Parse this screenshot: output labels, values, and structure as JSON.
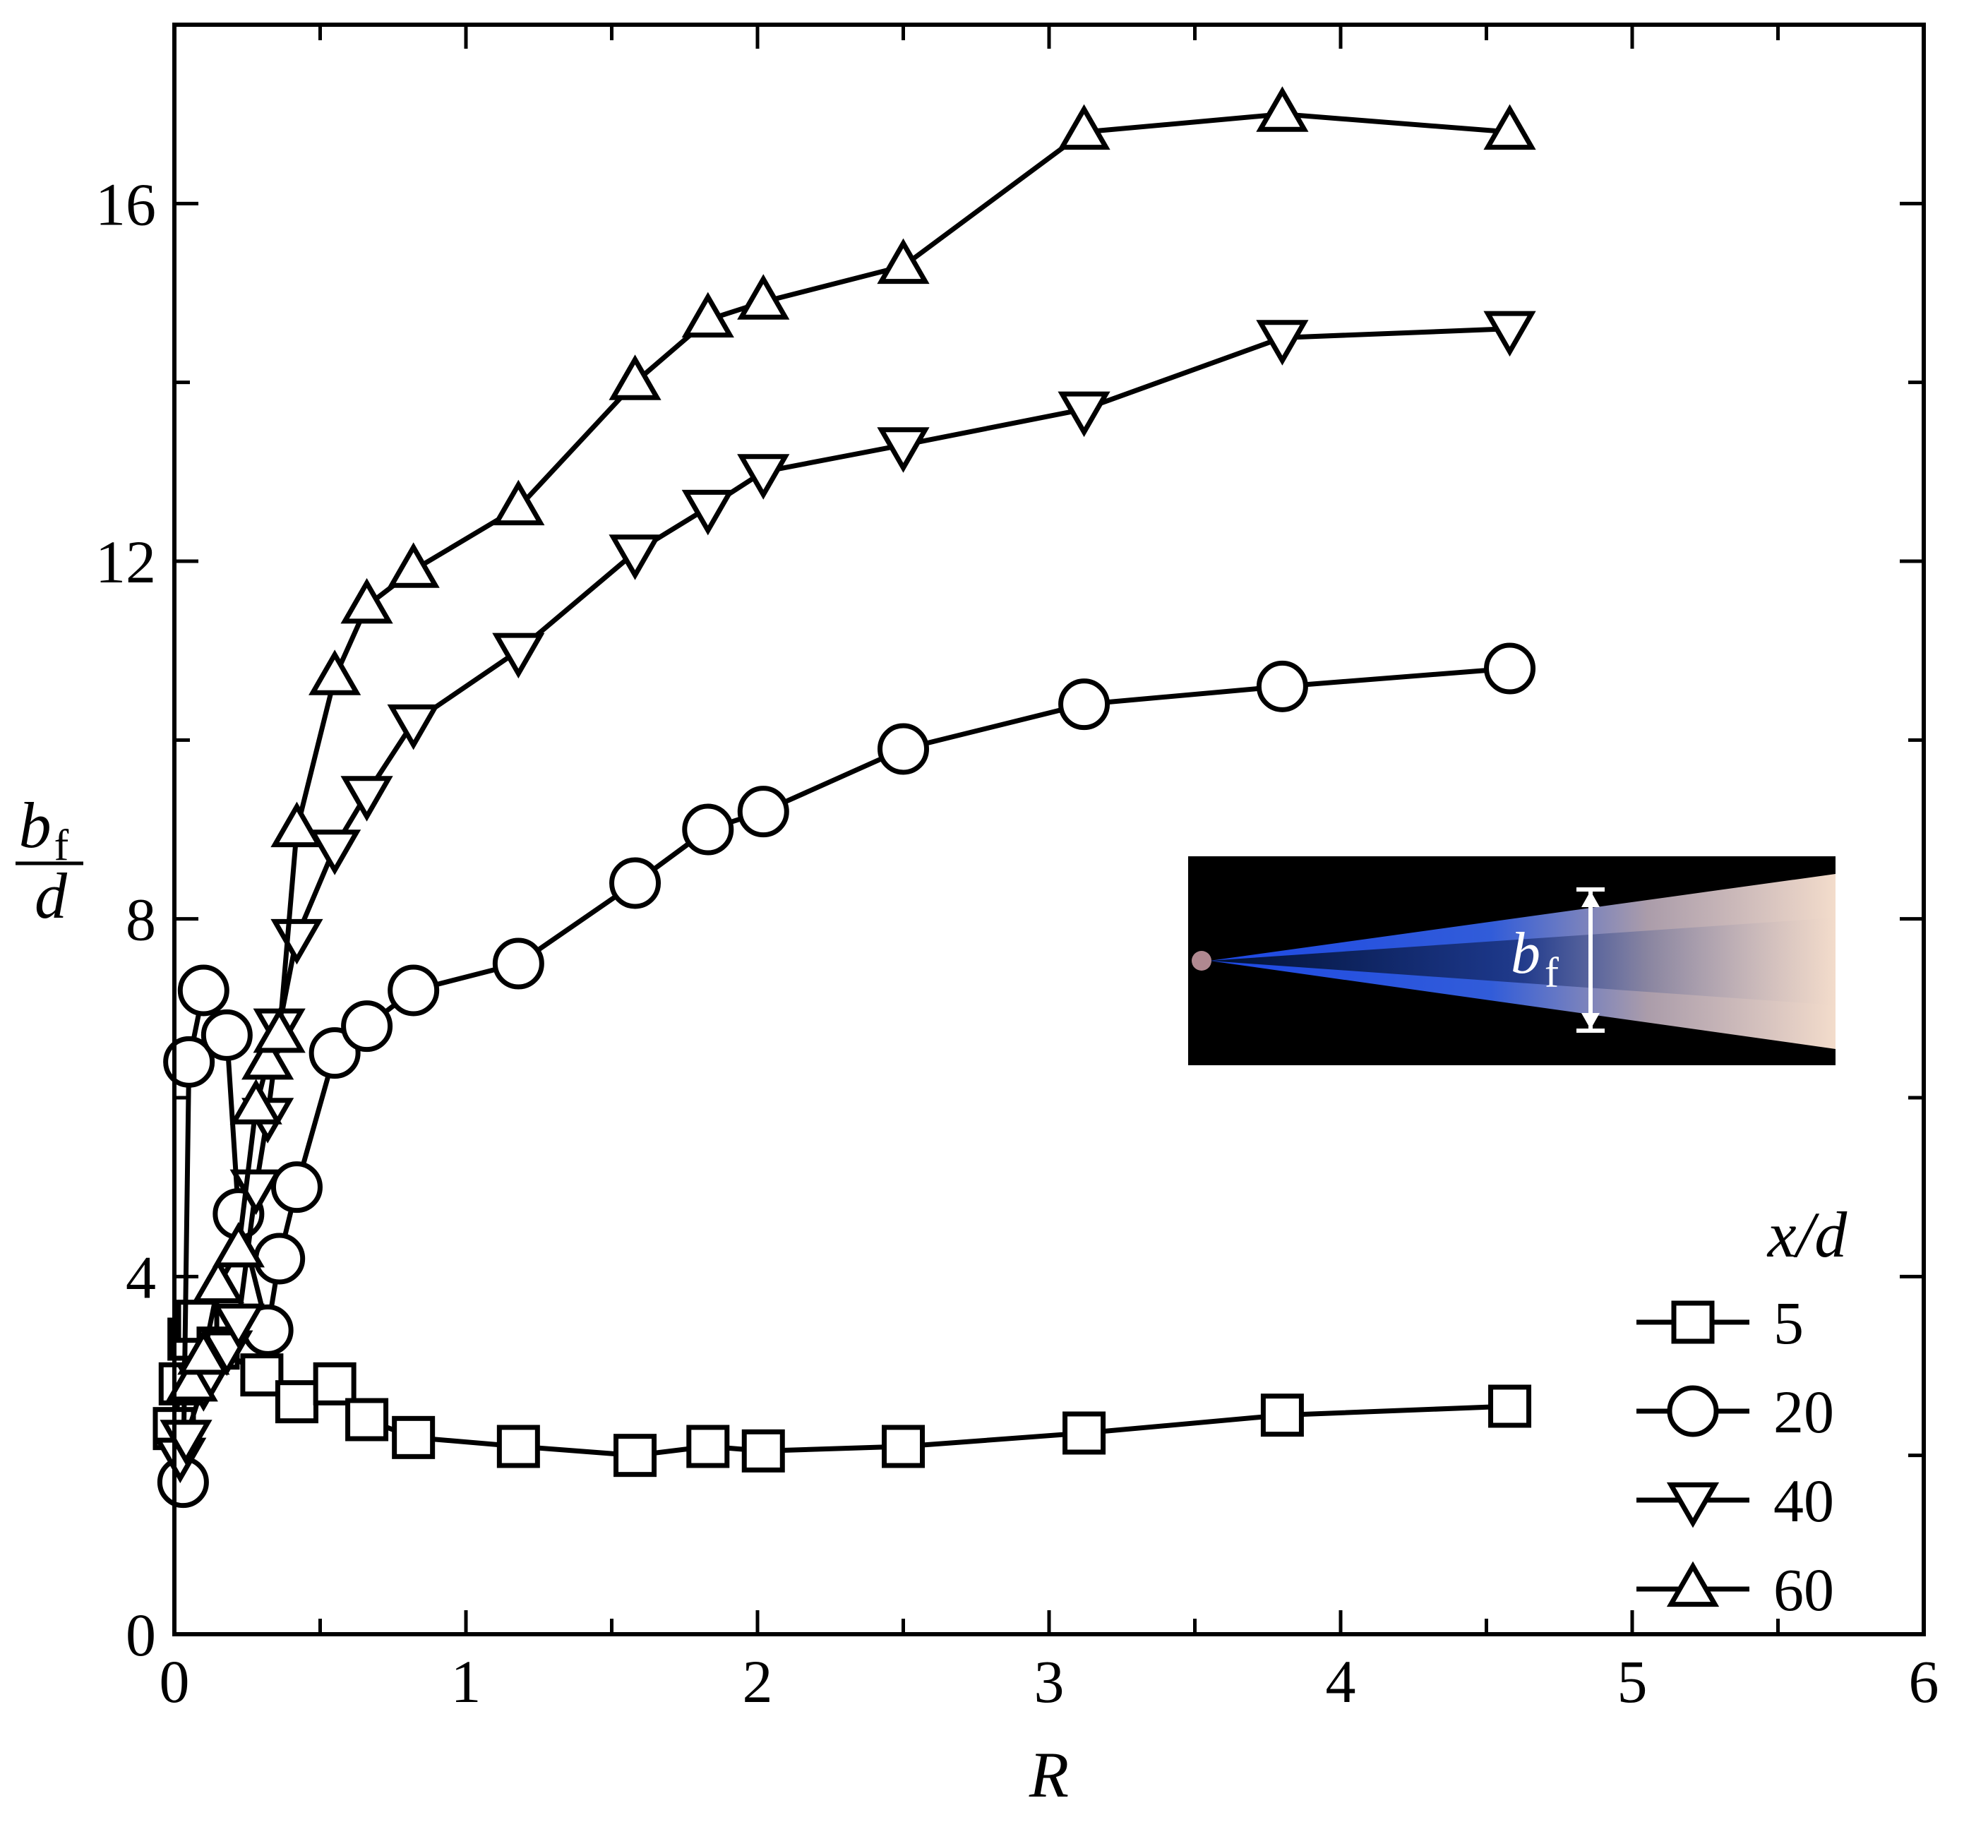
{
  "chart_data": {
    "type": "line",
    "xlabel": "R",
    "ylabel": {
      "numerator": "b",
      "numerator_sub": "f",
      "denominator": "d"
    },
    "xlim": [
      0,
      6
    ],
    "ylim": [
      0,
      18
    ],
    "x_ticks": [
      "0",
      "1",
      "2",
      "3",
      "4",
      "5",
      "6"
    ],
    "y_ticks": [
      "0",
      "4",
      "8",
      "12",
      "16"
    ],
    "legend": {
      "title": "x/d",
      "position": "bottom-right"
    },
    "series": [
      {
        "name": "5",
        "marker": "square",
        "x": [
          0.0,
          0.02,
          0.05,
          0.08,
          0.15,
          0.3,
          0.42,
          0.55,
          0.66,
          0.82,
          1.18,
          1.58,
          1.83,
          2.02,
          2.5,
          3.12,
          3.8,
          4.58
        ],
        "y": [
          2.3,
          2.8,
          3.3,
          3.5,
          3.2,
          2.9,
          2.6,
          2.8,
          2.4,
          2.2,
          2.1,
          2.0,
          2.1,
          2.05,
          2.1,
          2.25,
          2.45,
          2.55
        ]
      },
      {
        "name": "20",
        "marker": "circle",
        "x": [
          0.03,
          0.05,
          0.1,
          0.18,
          0.22,
          0.32,
          0.36,
          0.42,
          0.55,
          0.66,
          0.82,
          1.18,
          1.58,
          1.83,
          2.02,
          2.5,
          3.12,
          3.8,
          4.58
        ],
        "y": [
          1.7,
          6.4,
          7.2,
          6.7,
          4.7,
          3.4,
          4.2,
          5.0,
          6.5,
          6.8,
          7.2,
          7.5,
          8.4,
          9.0,
          9.2,
          9.9,
          10.4,
          10.6,
          10.8
        ]
      },
      {
        "name": "40",
        "marker": "triangle-down",
        "x": [
          0.02,
          0.04,
          0.1,
          0.18,
          0.22,
          0.28,
          0.32,
          0.36,
          0.42,
          0.55,
          0.66,
          0.82,
          1.18,
          1.58,
          1.83,
          2.02,
          2.5,
          3.12,
          3.8,
          4.58
        ],
        "y": [
          2.0,
          2.2,
          2.8,
          3.2,
          3.5,
          5.0,
          5.8,
          6.8,
          7.8,
          8.8,
          9.4,
          10.2,
          11.0,
          12.1,
          12.6,
          13.0,
          13.3,
          13.7,
          14.5,
          14.6
        ]
      },
      {
        "name": "60",
        "marker": "triangle-up",
        "x": [
          0.06,
          0.1,
          0.15,
          0.22,
          0.28,
          0.32,
          0.36,
          0.42,
          0.55,
          0.66,
          0.82,
          1.18,
          1.58,
          1.83,
          2.02,
          2.5,
          3.12,
          3.8,
          4.58
        ],
        "y": [
          2.8,
          3.1,
          3.9,
          4.3,
          5.9,
          6.4,
          6.7,
          9.0,
          10.7,
          11.5,
          11.9,
          12.6,
          14.0,
          14.7,
          14.9,
          15.3,
          16.8,
          17.0,
          16.8
        ]
      }
    ],
    "inset": {
      "type": "flame-photo",
      "label": "b",
      "label_sub": "f"
    }
  }
}
